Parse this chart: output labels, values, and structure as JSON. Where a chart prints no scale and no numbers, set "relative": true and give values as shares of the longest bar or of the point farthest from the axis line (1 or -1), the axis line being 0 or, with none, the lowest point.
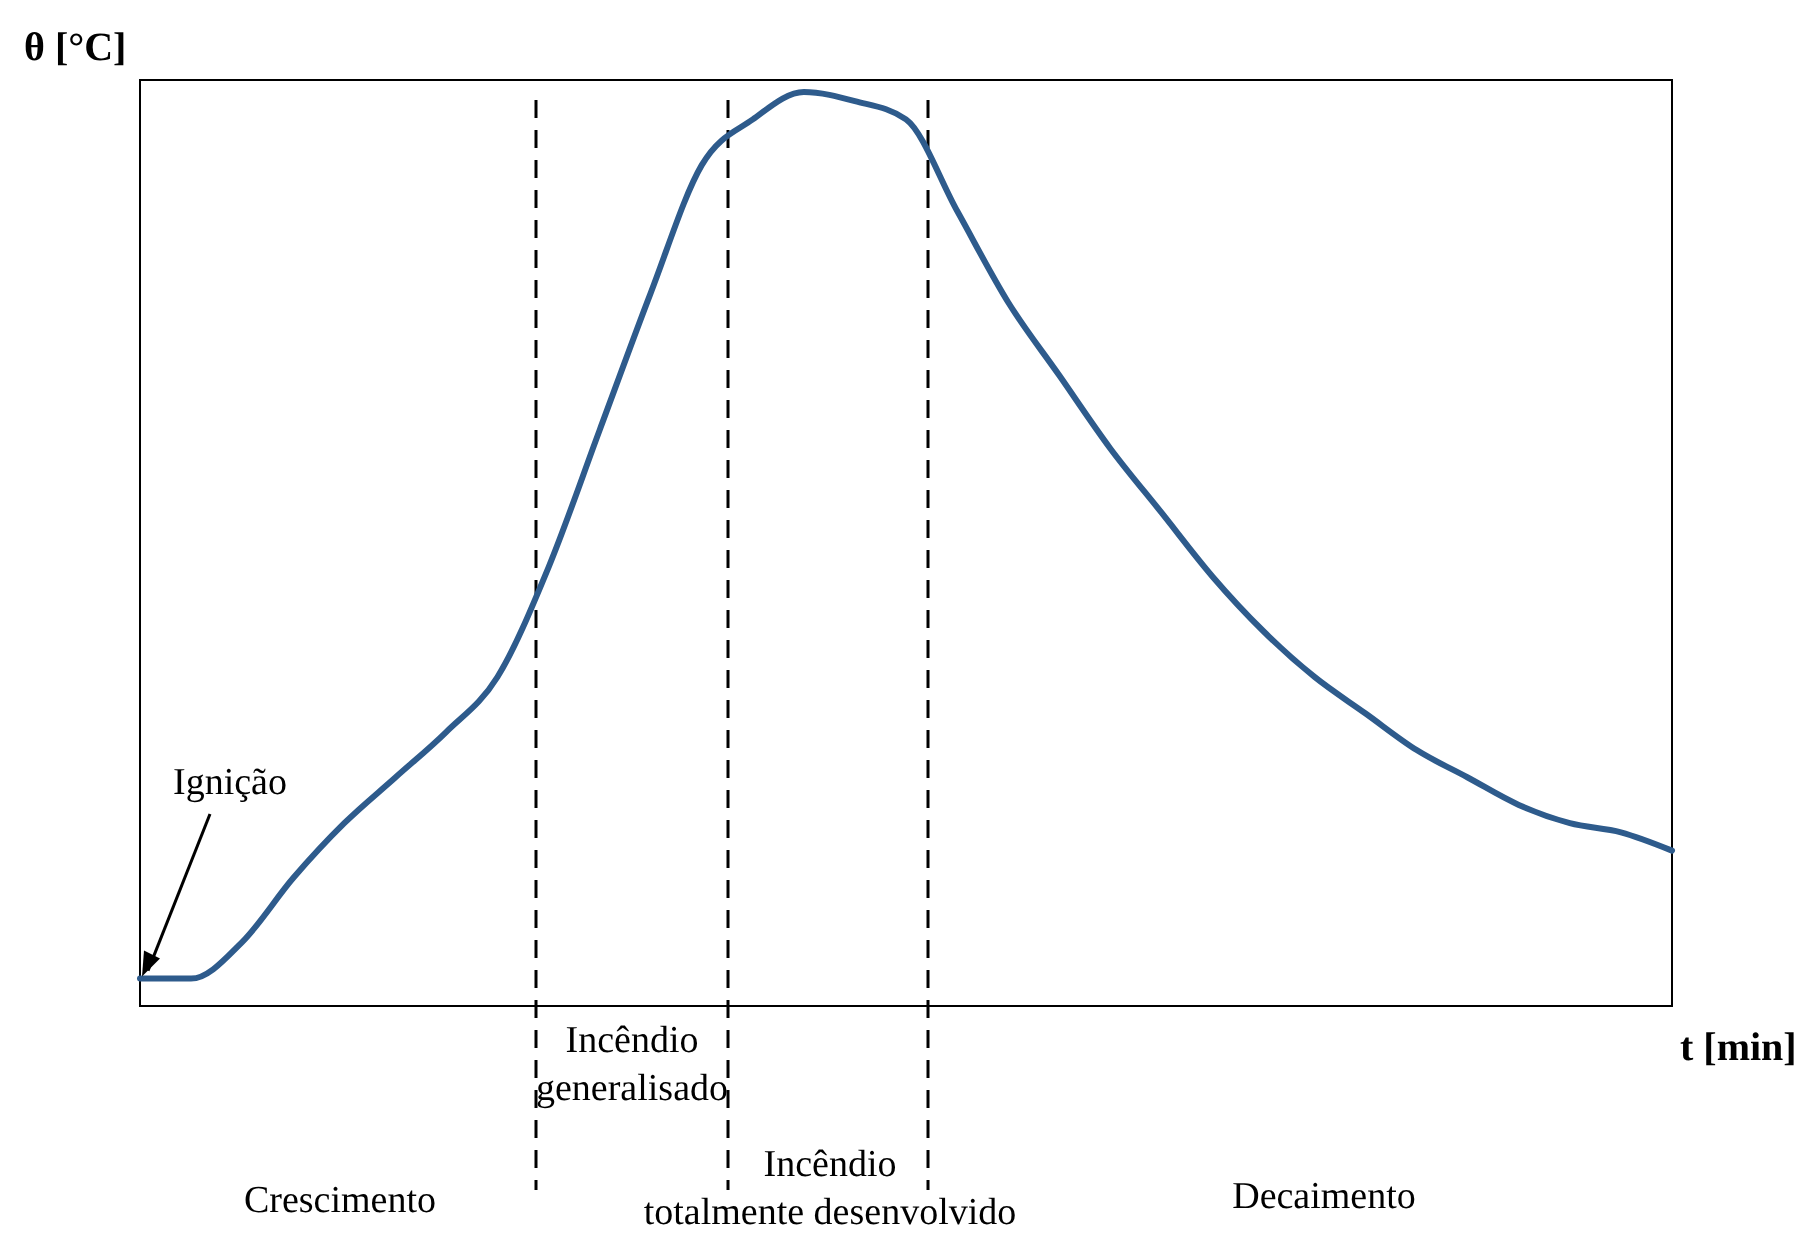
{
  "chart_data": {
    "type": "line",
    "relative": true,
    "xlabel": "t [min]",
    "ylabel": "θ [°C]",
    "categories": [
      null,
      null,
      null,
      null,
      null,
      null,
      null,
      null,
      null,
      null,
      null,
      null,
      null,
      null,
      null,
      null,
      null,
      null,
      null,
      null,
      null,
      null,
      null,
      null,
      null,
      null,
      null,
      null,
      null,
      null,
      null
    ],
    "series": [
      {
        "color": "#2e5b8c",
        "values": [
          0.03,
          0.03,
          0.07,
          0.14,
          0.2,
          0.25,
          0.3,
          0.36,
          0.48,
          0.63,
          0.78,
          0.92,
          0.97,
          1,
          0.99,
          0.97,
          0.87,
          0.77,
          0.69,
          0.61,
          0.54,
          0.47,
          0.41,
          0.36,
          0.32,
          0.28,
          0.25,
          0.22,
          0.2,
          0.19,
          0.17
        ]
      }
    ],
    "annotations": [
      "Ignição",
      "Crescimento",
      "Incêndio generalisado",
      "Incêndio totalmente desenvolvido",
      "Decaimento"
    ],
    "marker": "none",
    "line_style": "solid"
  }
}
